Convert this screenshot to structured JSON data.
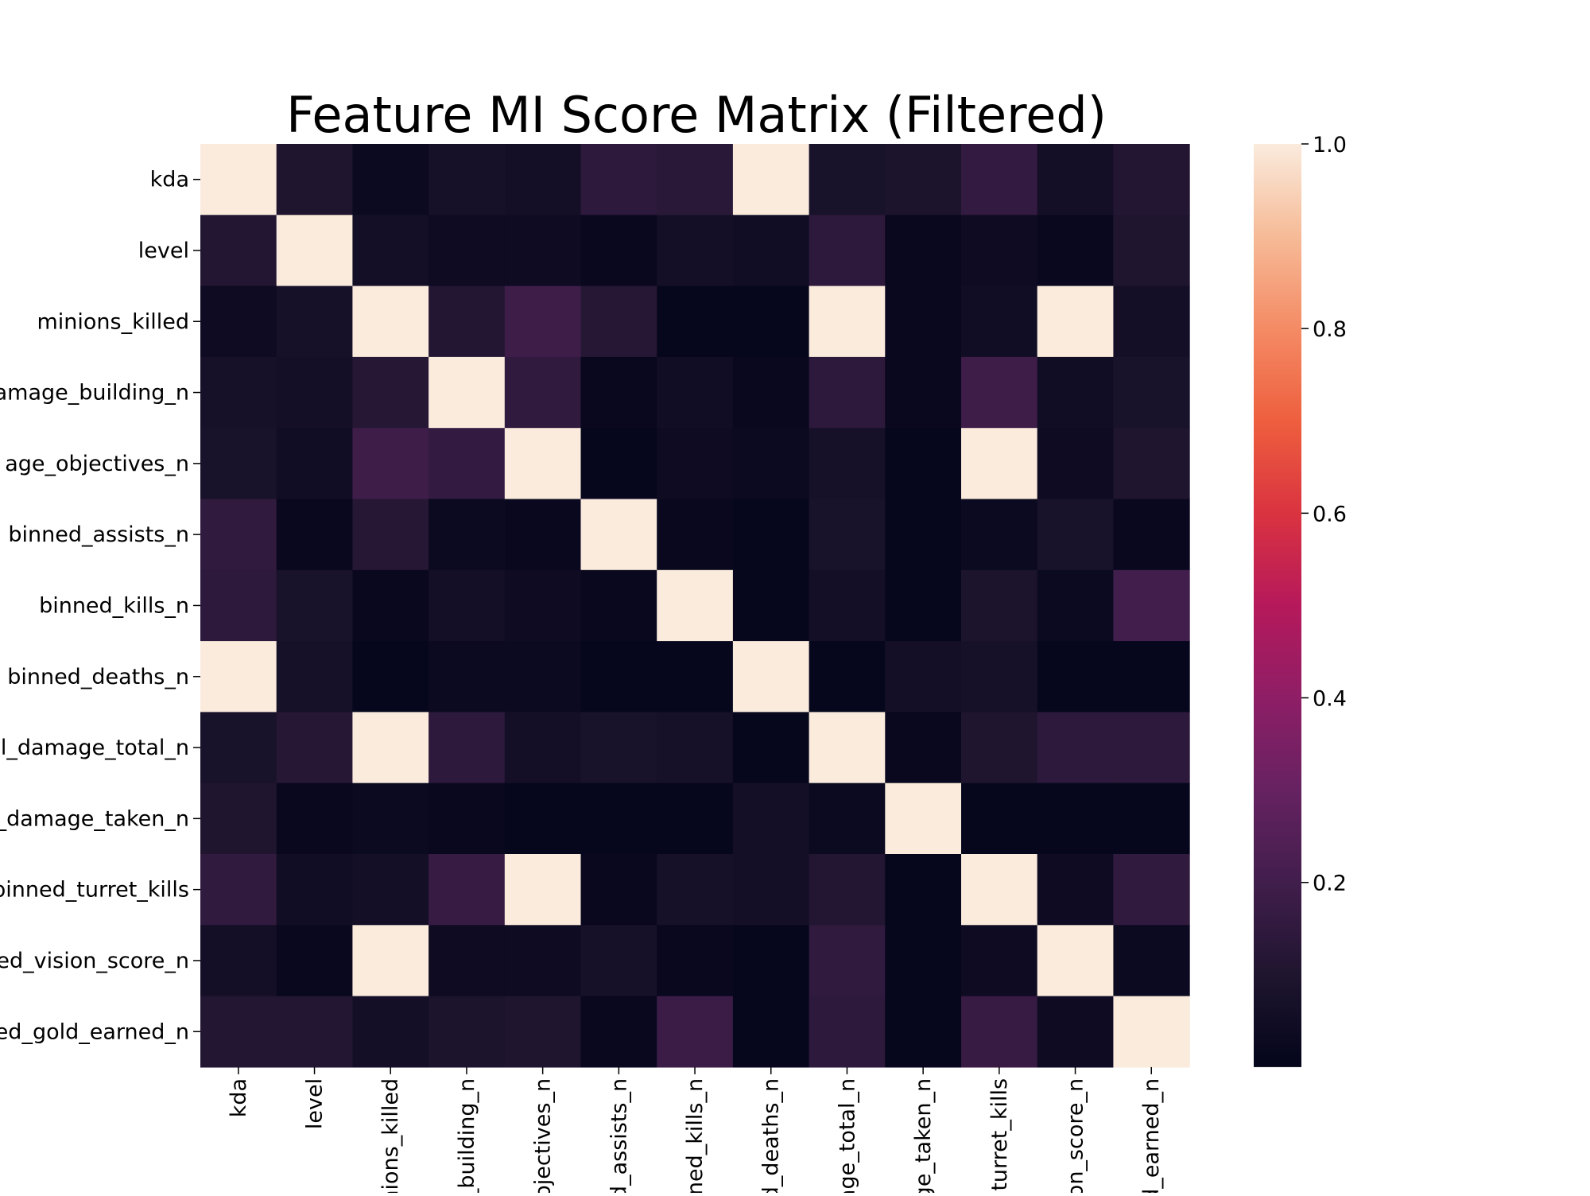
{
  "chart_data": {
    "type": "heatmap",
    "title": "Feature MI Score Matrix (Filtered)",
    "xlabel": "",
    "ylabel": "",
    "row_labels": [
      "kda",
      "level",
      "minions_killed",
      "amage_building_n",
      "age_objectives_n",
      "binned_assists_n",
      "binned_kills_n",
      "binned_deaths_n",
      "l_damage_total_n",
      "_damage_taken_n",
      "pinned_turret_kills",
      "ed_vision_score_n",
      "ed_gold_earned_n"
    ],
    "col_labels": [
      "kda",
      "level",
      "inions_killed",
      "_building_n",
      "ojectives_n",
      "d_assists_n",
      "ned_kills_n",
      "d_deaths_n",
      "age_total_n",
      "ge_taken_n",
      "turret_kills",
      "on_score_n",
      "d_earned_n"
    ],
    "values": [
      [
        1.0,
        0.1,
        0.03,
        0.07,
        0.06,
        0.14,
        0.13,
        1.0,
        0.08,
        0.09,
        0.16,
        0.06,
        0.11
      ],
      [
        0.11,
        1.0,
        0.06,
        0.04,
        0.04,
        0.02,
        0.06,
        0.05,
        0.14,
        0.02,
        0.04,
        0.02,
        0.1
      ],
      [
        0.04,
        0.07,
        1.0,
        0.11,
        0.19,
        0.12,
        0.01,
        0.01,
        1.0,
        0.02,
        0.05,
        1.0,
        0.06
      ],
      [
        0.07,
        0.06,
        0.12,
        1.0,
        0.15,
        0.02,
        0.05,
        0.02,
        0.14,
        0.02,
        0.19,
        0.05,
        0.08
      ],
      [
        0.08,
        0.05,
        0.19,
        0.16,
        1.0,
        0.01,
        0.04,
        0.03,
        0.07,
        0.01,
        1.0,
        0.04,
        0.1
      ],
      [
        0.15,
        0.02,
        0.12,
        0.03,
        0.02,
        1.0,
        0.02,
        0.01,
        0.08,
        0.01,
        0.03,
        0.08,
        0.02
      ],
      [
        0.14,
        0.08,
        0.02,
        0.06,
        0.04,
        0.02,
        1.0,
        0.01,
        0.06,
        0.01,
        0.09,
        0.03,
        0.2
      ],
      [
        1.0,
        0.07,
        0.01,
        0.03,
        0.03,
        0.01,
        0.01,
        1.0,
        0.01,
        0.06,
        0.07,
        0.01,
        0.01
      ],
      [
        0.08,
        0.12,
        1.0,
        0.14,
        0.06,
        0.08,
        0.07,
        0.01,
        1.0,
        0.02,
        0.1,
        0.14,
        0.14
      ],
      [
        0.1,
        0.02,
        0.03,
        0.02,
        0.01,
        0.01,
        0.01,
        0.06,
        0.03,
        1.0,
        0.01,
        0.01,
        0.01
      ],
      [
        0.15,
        0.05,
        0.06,
        0.17,
        1.0,
        0.02,
        0.07,
        0.06,
        0.11,
        0.01,
        1.0,
        0.04,
        0.15
      ],
      [
        0.06,
        0.02,
        1.0,
        0.04,
        0.04,
        0.07,
        0.02,
        0.01,
        0.15,
        0.01,
        0.04,
        1.0,
        0.03
      ],
      [
        0.11,
        0.11,
        0.06,
        0.09,
        0.1,
        0.02,
        0.18,
        0.01,
        0.14,
        0.01,
        0.17,
        0.04,
        1.0
      ]
    ],
    "colorbar": {
      "colormap": "rocket",
      "range": [
        0.0,
        1.0
      ],
      "ticks": [
        0.2,
        0.4,
        0.6,
        0.8,
        1.0
      ],
      "tick_labels": [
        "0.2",
        "0.4",
        "0.6",
        "0.8",
        "1.0"
      ]
    },
    "grid": false,
    "legend": "colorbar-right"
  }
}
